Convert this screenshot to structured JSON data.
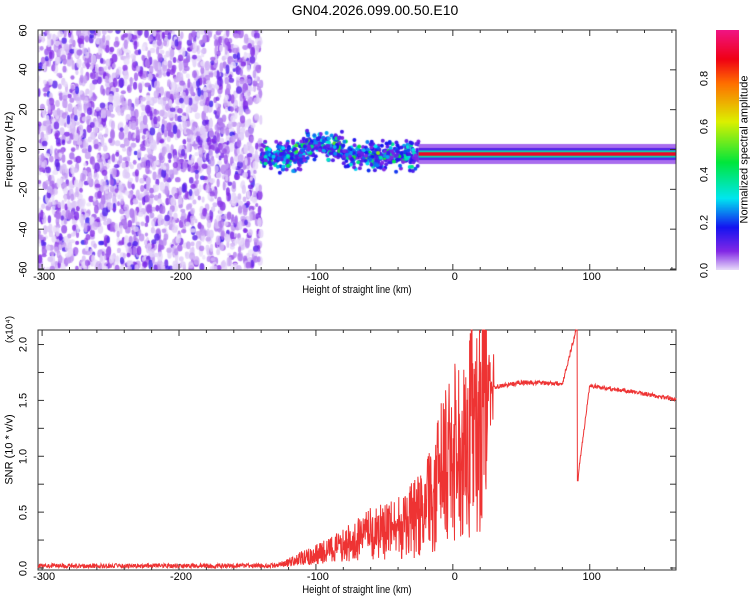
{
  "title": "GN04.2026.099.00.50.E10",
  "chart_data": [
    {
      "type": "heatmap",
      "title": "GN04.2026.099.00.50.E10",
      "xlabel": "Height of straight line (km)",
      "ylabel": "Frequency (Hz)",
      "xlim": [
        -303,
        163
      ],
      "ylim": [
        -60,
        60
      ],
      "xticks": [
        "-300",
        "-200",
        "-100",
        "0",
        "100"
      ],
      "yticks": [
        "60",
        "40",
        "20",
        "0",
        "-20",
        "-40",
        "-60"
      ],
      "colorbar": {
        "label": "Normalized spectral amplitude",
        "range": [
          0,
          1
        ],
        "ticks": [
          "0.0",
          "0.2",
          "0.4",
          "0.6",
          "0.8"
        ]
      },
      "regions": [
        {
          "x_range": [
            -303,
            -140
          ],
          "freq_range": [
            -60,
            60
          ],
          "amplitude": "0.0-0.15 broadband noise"
        },
        {
          "x_range": [
            -140,
            -25
          ],
          "freq_center": -2,
          "amplitude": "0.1-0.5 scattered"
        },
        {
          "x_range": [
            -25,
            163
          ],
          "freq_center": -2,
          "amplitude": "0.5-1.0 narrow band"
        }
      ]
    },
    {
      "type": "line",
      "xlabel": "Height of straight line (km)",
      "ylabel": "SNR (10 * v/v)",
      "y_multiplier": "(x10⁴)",
      "xlim": [
        -303,
        163
      ],
      "ylim": [
        0,
        2.13
      ],
      "xticks": [
        "-300",
        "-200",
        "-100",
        "0",
        "100"
      ],
      "yticks": [
        "0.0",
        "0.5",
        "1.0",
        "1.5",
        "2.0"
      ],
      "color": "#ee3333",
      "series": [
        {
          "name": "SNR",
          "x": [
            -303,
            -130,
            -120,
            -100,
            -80,
            -60,
            -40,
            -20,
            -10,
            0,
            10,
            20,
            30,
            50,
            80,
            90,
            91,
            100,
            130,
            163
          ],
          "y": [
            0.02,
            0.02,
            0.05,
            0.12,
            0.2,
            0.3,
            0.35,
            0.5,
            0.8,
            1.0,
            1.2,
            1.4,
            1.62,
            1.66,
            1.65,
            2.13,
            0.78,
            1.63,
            1.58,
            1.51
          ]
        }
      ]
    }
  ]
}
